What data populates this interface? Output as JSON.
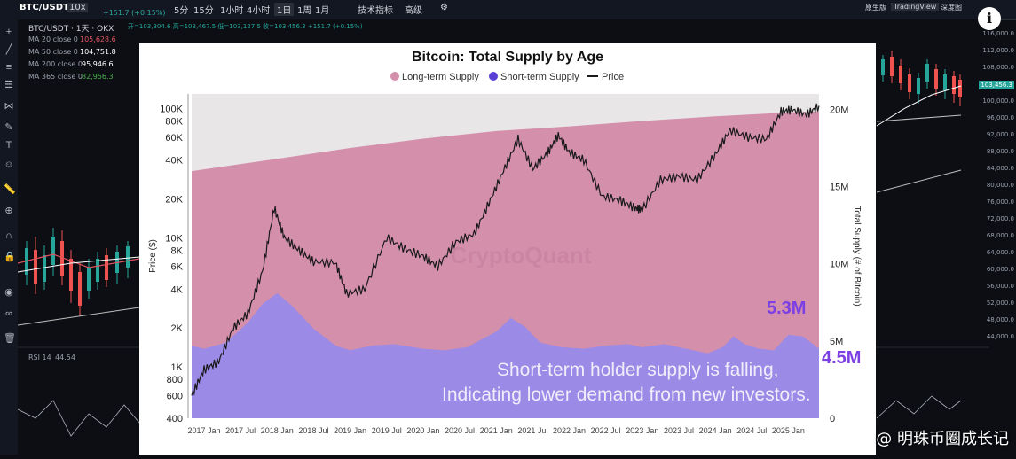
{
  "topbar": {
    "symbol": "BTC/USDT",
    "leverage": "10x",
    "price_change": "+151.7 (+0.15%)",
    "intervals": [
      "5分",
      "15分",
      "1小时",
      "4小时",
      "1日",
      "1周",
      "1月"
    ],
    "active_interval": "1日",
    "indicators_label": "技术指标",
    "advanced_label": "高级",
    "right_tabs": [
      "原生版",
      "TradingView",
      "深度图"
    ],
    "active_right_tab": "TradingView"
  },
  "legend_header": {
    "title_line": "BTC/USDT · 1天 · OKX",
    "ohlc": "开=103,304.6  高=103,467.5  低=103,127.5  收=103,456.3  +151.7 (+0.15%)",
    "ma": [
      {
        "label": "MA 20 close 0",
        "value": "105,628.6",
        "color": "#e0545e"
      },
      {
        "label": "MA 50 close 0",
        "value": "104,751.8",
        "color": "#ffffff"
      },
      {
        "label": "MA 200 close 0",
        "value": "95,946.6",
        "color": "#ffffff"
      },
      {
        "label": "MA 365 close 0",
        "value": "82,956.3",
        "color": "#4caf50"
      }
    ],
    "rsi_label": "RSI 14",
    "rsi_value": "44.54"
  },
  "right_axis_ticks": [
    "116,000.0",
    "112,000.0",
    "108,000.0",
    "104,000.0",
    "100,000.0",
    "96,000.0",
    "92,000.0",
    "88,000.0",
    "84,000.0",
    "80,000.0",
    "76,000.0",
    "72,000.0",
    "68,000.0",
    "64,000.0",
    "60,000.0",
    "56,000.0",
    "52,000.0",
    "48,000.0",
    "44,000.0"
  ],
  "price_tag": "103,456.3",
  "overlay": {
    "short_value": "5.3M",
    "long_value": "4.5M",
    "line1": "Short-term holder supply is falling,",
    "line2": "Indicating lower demand from new investors."
  },
  "watermark_text": "@ 明珠币圈成长记",
  "info_icon": "i",
  "chart_data": {
    "type": "area",
    "title": "Bitcoin: Total Supply by Age",
    "legend": [
      "Long-term Supply",
      "Short-term Supply",
      "Price"
    ],
    "legend_position": "top",
    "colors": {
      "long_term": "#d48fab",
      "short_term": "#9b8ae6",
      "price": "#1a1a1a",
      "total_bg": "#e9e6e8"
    },
    "x_ticks": [
      "2017 Jan",
      "2017 Jul",
      "2018 Jan",
      "2018 Jul",
      "2019 Jan",
      "2019 Jul",
      "2020 Jan",
      "2020 Jul",
      "2021 Jan",
      "2021 Jul",
      "2022 Jan",
      "2022 Jul",
      "2023 Jan",
      "2023 Jul",
      "2024 Jan",
      "2024 Jul",
      "2025 Jan"
    ],
    "ylabel_left": "Price ($)",
    "ylabel_right": "Total Supply (# of Bitcoin)",
    "left_ticks": [
      "100K",
      "80K",
      "60K",
      "40K",
      "20K",
      "10K",
      "8K",
      "6K",
      "4K",
      "2K",
      "1K",
      "800",
      "600",
      "400"
    ],
    "right_ticks": [
      "20M",
      "15M",
      "10M",
      "5M",
      "0"
    ],
    "ylim_left": [
      400,
      130000
    ],
    "ylim_right": [
      0,
      21000000
    ],
    "xlim": [
      2016.83,
      2025.42
    ],
    "total_supply": {
      "x": [
        2016.83,
        2018.0,
        2019.0,
        2020.0,
        2021.0,
        2022.0,
        2023.0,
        2024.0,
        2025.0,
        2025.42
      ],
      "y": [
        16.0,
        16.8,
        17.5,
        18.1,
        18.6,
        18.9,
        19.25,
        19.55,
        19.8,
        19.87
      ]
    },
    "short_term_supply": {
      "x": [
        2016.83,
        2017.0,
        2017.3,
        2017.6,
        2017.8,
        2018.0,
        2018.2,
        2018.5,
        2018.8,
        2019.0,
        2019.3,
        2019.6,
        2020.0,
        2020.3,
        2020.6,
        2021.0,
        2021.2,
        2021.4,
        2021.6,
        2021.9,
        2022.2,
        2022.5,
        2022.8,
        2023.0,
        2023.3,
        2023.6,
        2023.9,
        2024.1,
        2024.25,
        2024.4,
        2024.6,
        2024.8,
        2025.0,
        2025.2,
        2025.42
      ],
      "y": [
        4.7,
        4.5,
        4.9,
        6.2,
        7.4,
        8.1,
        7.3,
        5.8,
        4.7,
        4.4,
        4.7,
        4.8,
        4.5,
        4.4,
        4.6,
        5.6,
        6.5,
        5.9,
        4.9,
        4.6,
        4.5,
        4.7,
        4.8,
        4.6,
        4.8,
        4.5,
        4.2,
        4.6,
        5.3,
        4.8,
        4.5,
        4.4,
        5.4,
        5.3,
        4.5
      ]
    },
    "price": {
      "x": [
        2016.83,
        2017.0,
        2017.2,
        2017.4,
        2017.6,
        2017.8,
        2017.96,
        2018.1,
        2018.3,
        2018.5,
        2018.8,
        2018.95,
        2019.2,
        2019.5,
        2019.75,
        2020.0,
        2020.2,
        2020.45,
        2020.7,
        2020.9,
        2021.1,
        2021.3,
        2021.5,
        2021.7,
        2021.85,
        2022.0,
        2022.2,
        2022.45,
        2022.7,
        2022.9,
        2023.0,
        2023.25,
        2023.5,
        2023.75,
        2024.0,
        2024.2,
        2024.45,
        2024.7,
        2024.9,
        2025.05,
        2025.25,
        2025.42
      ],
      "y": [
        600,
        950,
        1100,
        2000,
        2600,
        5500,
        17000,
        10000,
        8000,
        6500,
        6400,
        3700,
        4000,
        10000,
        8200,
        7200,
        6000,
        9300,
        10700,
        18500,
        33000,
        58000,
        34000,
        45000,
        62000,
        46000,
        40000,
        21000,
        19500,
        17000,
        16500,
        28000,
        30000,
        28000,
        44000,
        68000,
        60000,
        58000,
        95000,
        98000,
        90000,
        105000
      ]
    }
  }
}
